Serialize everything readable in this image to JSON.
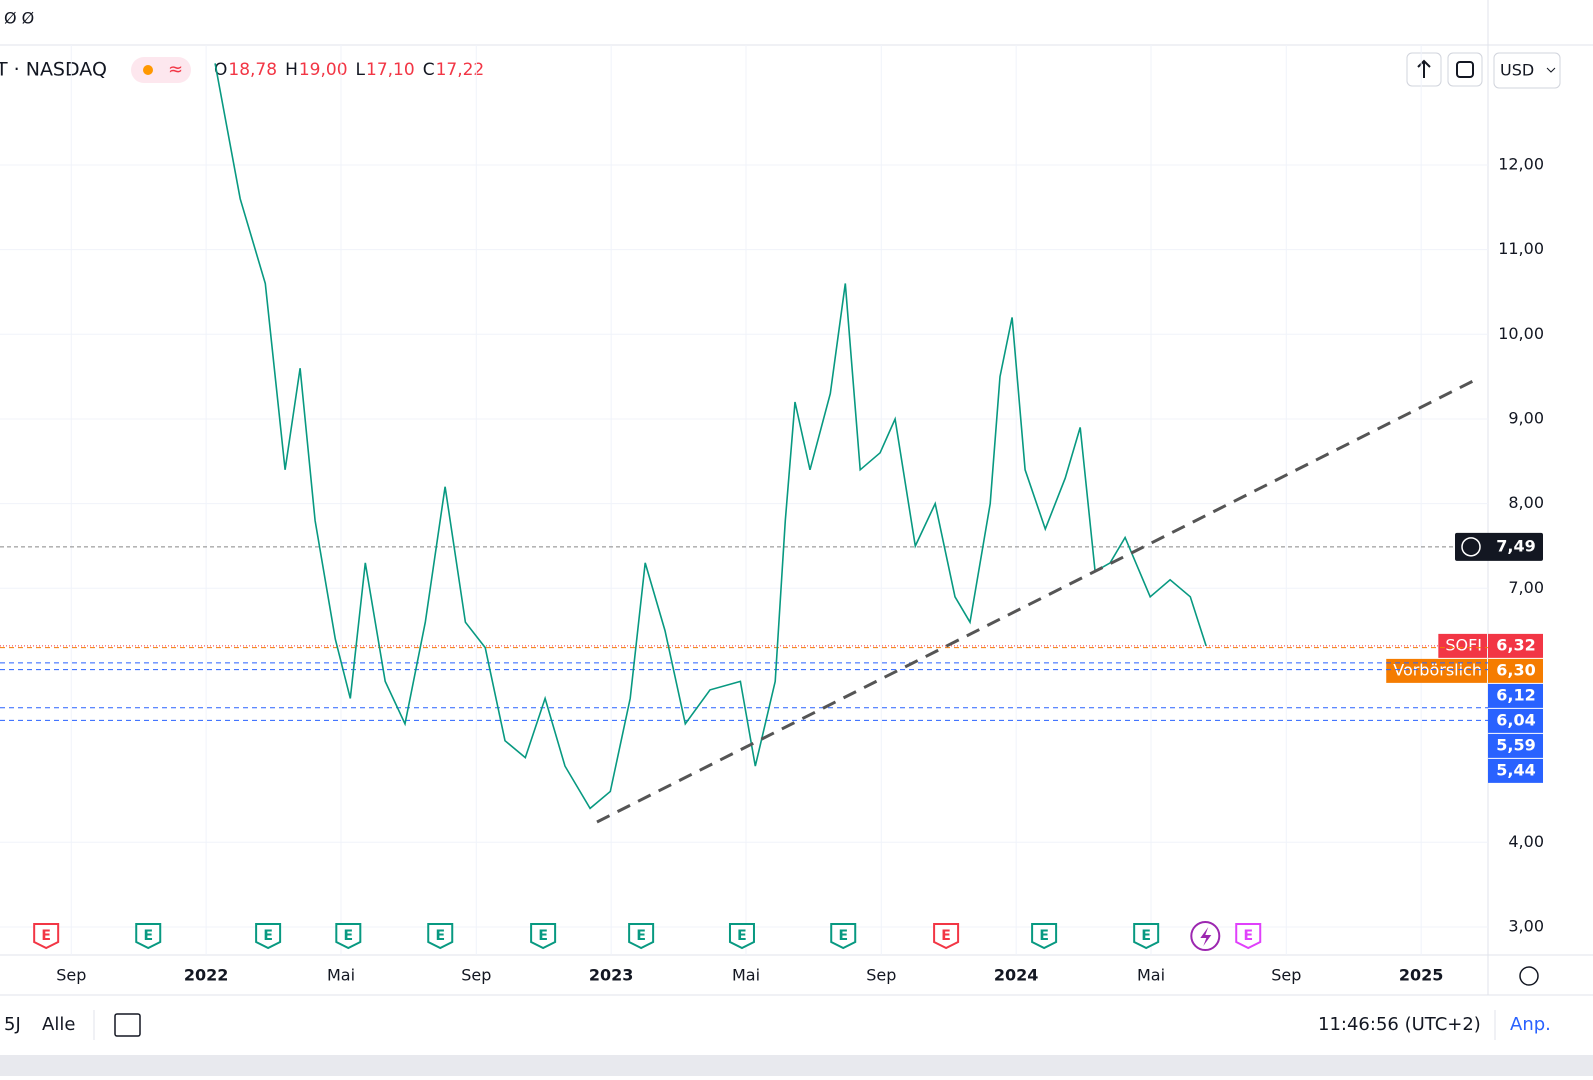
{
  "top_left": "Ø Ø",
  "header": {
    "symbol": "T · NASDAQ",
    "ohlc": [
      {
        "key": "O",
        "text": "18,78"
      },
      {
        "key": "H",
        "text": "19,00"
      },
      {
        "key": "L",
        "text": "17,10"
      },
      {
        "key": "C",
        "text": "17,22"
      }
    ],
    "currency": "USD"
  },
  "chart_data": {
    "type": "line",
    "x": [
      2022.022,
      2022.084,
      2022.146,
      2022.195,
      2022.232,
      2022.269,
      2022.319,
      2022.356,
      2022.393,
      2022.442,
      2022.491,
      2022.541,
      2022.59,
      2022.64,
      2022.689,
      2022.738,
      2022.788,
      2022.837,
      2022.886,
      2022.948,
      2022.998,
      2023.047,
      2023.084,
      2023.133,
      2023.183,
      2023.244,
      2023.319,
      2023.356,
      2023.405,
      2023.43,
      2023.454,
      2023.491,
      2023.541,
      2023.578,
      2023.615,
      2023.664,
      2023.701,
      2023.751,
      2023.8,
      2023.849,
      2023.886,
      2023.936,
      2023.96,
      2023.99,
      2024.022,
      2024.072,
      2024.121,
      2024.158,
      2024.195,
      2024.232,
      2024.269,
      2024.331,
      2024.38,
      2024.43,
      2024.469
    ],
    "series": [
      {
        "name": "SOFI",
        "color": "#089981",
        "values": [
          13.2,
          11.6,
          10.6,
          8.4,
          9.6,
          7.8,
          6.4,
          5.7,
          7.3,
          5.9,
          5.4,
          6.6,
          8.2,
          6.6,
          6.3,
          5.2,
          5.0,
          5.7,
          4.9,
          4.4,
          4.6,
          5.7,
          7.3,
          6.5,
          5.4,
          5.8,
          5.9,
          4.9,
          5.9,
          7.8,
          9.2,
          8.4,
          9.3,
          10.6,
          8.4,
          8.6,
          9.0,
          7.5,
          8.0,
          6.9,
          6.6,
          8.0,
          9.5,
          10.2,
          8.4,
          7.7,
          8.3,
          8.9,
          7.2,
          7.3,
          7.6,
          6.9,
          7.1,
          6.9,
          6.32
        ]
      }
    ],
    "trendline": {
      "x": [
        2022.965,
        2025.133
      ],
      "y": [
        4.24,
        9.46
      ],
      "color": "#555555"
    },
    "xlim": [
      2021.491,
      2025.165
    ],
    "xticks": [
      {
        "value": 2021.667,
        "label": "Sep"
      },
      {
        "value": 2022,
        "label": "2022"
      },
      {
        "value": 2022.333,
        "label": "Mai"
      },
      {
        "value": 2022.667,
        "label": "Sep"
      },
      {
        "value": 2023,
        "label": "2023"
      },
      {
        "value": 2023.333,
        "label": "Mai"
      },
      {
        "value": 2023.667,
        "label": "Sep"
      },
      {
        "value": 2024,
        "label": "2024"
      },
      {
        "value": 2024.333,
        "label": "Mai"
      },
      {
        "value": 2024.667,
        "label": "Sep"
      },
      {
        "value": 2025,
        "label": "2025"
      }
    ],
    "ylim": [
      2.669,
      13.417
    ],
    "yticks": [
      {
        "value": 3,
        "label": "3,00"
      },
      {
        "value": 4,
        "label": "4,00"
      },
      {
        "value": 7,
        "label": "7,00"
      },
      {
        "value": 8,
        "label": "8,00"
      },
      {
        "value": 9,
        "label": "9,00"
      },
      {
        "value": 10,
        "label": "10,00"
      },
      {
        "value": 11,
        "label": "11,00"
      },
      {
        "value": 12,
        "label": "12,00"
      }
    ],
    "grid": true,
    "crosshair": {
      "value": 7.49,
      "label": "7,49"
    },
    "levels": [
      {
        "value": 6.32,
        "label": "6,32",
        "tag": "SOFI",
        "color": "#f23645"
      },
      {
        "value": 6.3,
        "label": "6,30",
        "tag": "Vorbörslich",
        "color": "#f57c00"
      },
      {
        "value": 6.12,
        "label": "6,12",
        "color": "#2962ff"
      },
      {
        "value": 6.04,
        "label": "6,04",
        "color": "#2962ff"
      },
      {
        "value": 5.59,
        "label": "5,59",
        "color": "#2962ff"
      },
      {
        "value": 5.44,
        "label": "5,44",
        "color": "#2962ff"
      }
    ],
    "events": [
      {
        "x": 2021.605,
        "label": "E",
        "color": "#f23645"
      },
      {
        "x": 2021.857,
        "label": "E",
        "color": "#089981"
      },
      {
        "x": 2022.153,
        "label": "E",
        "color": "#089981"
      },
      {
        "x": 2022.351,
        "label": "E",
        "color": "#089981"
      },
      {
        "x": 2022.578,
        "label": "E",
        "color": "#089981"
      },
      {
        "x": 2022.832,
        "label": "E",
        "color": "#089981"
      },
      {
        "x": 2023.074,
        "label": "E",
        "color": "#089981"
      },
      {
        "x": 2023.323,
        "label": "E",
        "color": "#089981"
      },
      {
        "x": 2023.573,
        "label": "E",
        "color": "#089981"
      },
      {
        "x": 2023.827,
        "label": "E",
        "color": "#f23645"
      },
      {
        "x": 2024.069,
        "label": "E",
        "color": "#089981"
      },
      {
        "x": 2024.321,
        "label": "E",
        "color": "#089981"
      },
      {
        "x": 2024.467,
        "color": "#9c27b0"
      },
      {
        "x": 2024.573,
        "label": "E",
        "color": "#e040fb"
      }
    ]
  },
  "bottom_bar": {
    "ranges": [
      "5J",
      "Alle"
    ],
    "time": "11:46:56 (UTC+2)",
    "adjust": "Anp."
  }
}
